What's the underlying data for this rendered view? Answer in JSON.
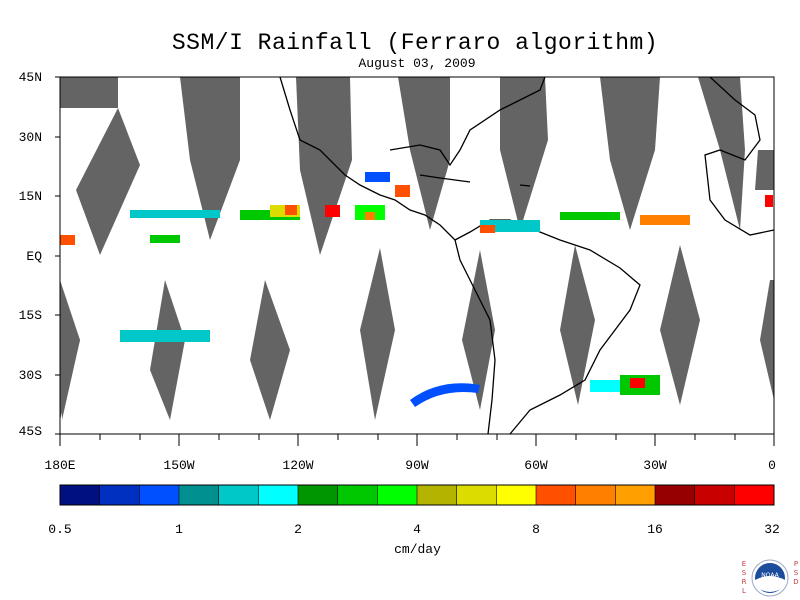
{
  "title": "SSM/I Rainfall (Ferraro algorithm)",
  "subtitle": "August 03, 2009",
  "lat_labels": [
    "45N",
    "30N",
    "15N",
    "EQ",
    "15S",
    "30S",
    "45S"
  ],
  "lon_labels": [
    "180E",
    "150W",
    "120W",
    "90W",
    "60W",
    "30W",
    "0"
  ],
  "colorbar": {
    "colors": [
      "#001080",
      "#0030c0",
      "#0050ff",
      "#009090",
      "#00c8c8",
      "#00ffff",
      "#009600",
      "#00c800",
      "#00ff00",
      "#b4b400",
      "#dcdc00",
      "#ffff00",
      "#ff5000",
      "#ff8000",
      "#ffa000",
      "#960000",
      "#c80000",
      "#ff0000"
    ],
    "ticks": [
      "0.5",
      "1",
      "2",
      "4",
      "8",
      "16",
      "32"
    ],
    "units": "cm/day"
  },
  "logo": {
    "left_letters": "ESRL",
    "right_letters": "PSD",
    "center": "NOAA"
  },
  "colors": {
    "swath_gap": "#646464",
    "land_outline": "#000000"
  }
}
